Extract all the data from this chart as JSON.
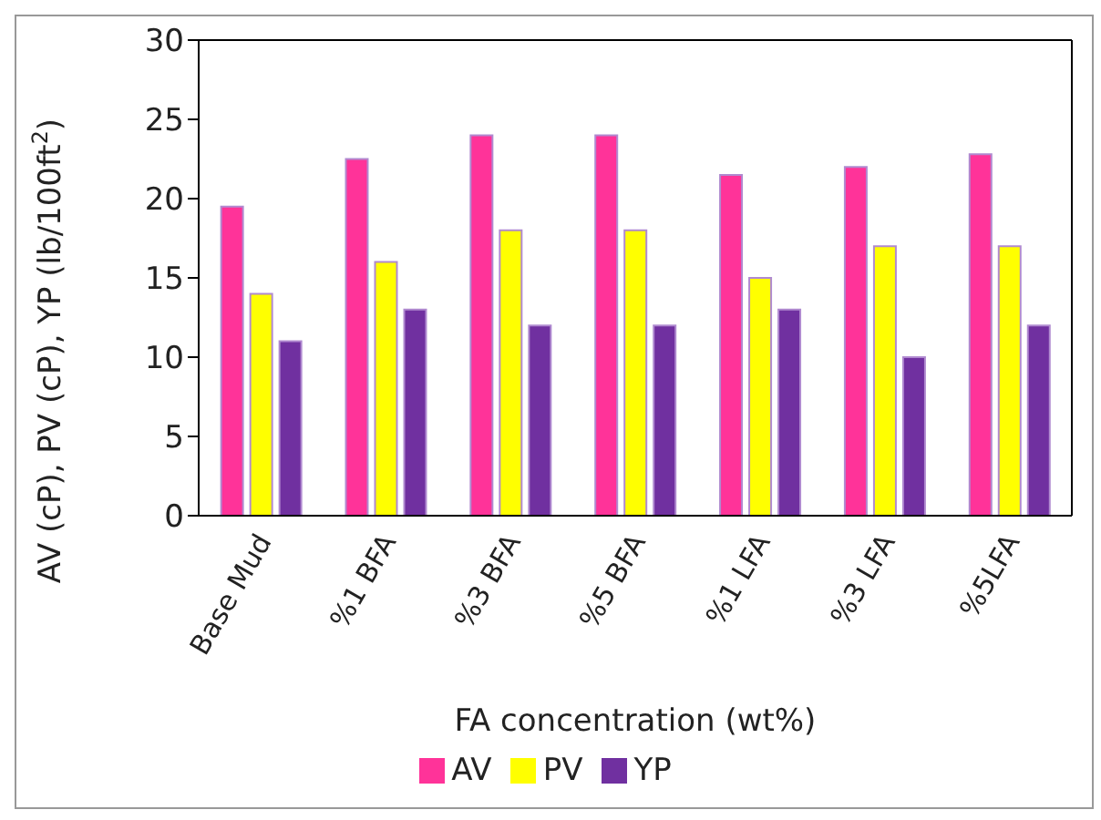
{
  "chart_data": {
    "type": "bar",
    "xlabel": "FA concentration (wt%)",
    "ylabel": "AV (cP), PV (cP), YP (lb/100ft$^{2}$)",
    "categories": [
      "Base Mud",
      "%1 BFA",
      "%3 BFA",
      "%5 BFA",
      "%1 LFA",
      "%3 LFA",
      "%5LFA"
    ],
    "series": [
      {
        "name": "AV",
        "color": "#ff3399",
        "values": [
          19.5,
          22.5,
          24,
          24,
          21.5,
          22,
          22.8
        ]
      },
      {
        "name": "PV",
        "color": "#ffff00",
        "values": [
          14,
          16,
          18,
          18,
          15,
          17,
          17
        ]
      },
      {
        "name": "YP",
        "color": "#7030a0",
        "values": [
          11,
          13,
          12,
          12,
          13,
          10,
          12
        ]
      }
    ],
    "ylim": [
      0,
      30
    ],
    "yticks": [
      0,
      5,
      10,
      15,
      20,
      25,
      30
    ],
    "grid": false,
    "legend": "bottom"
  }
}
